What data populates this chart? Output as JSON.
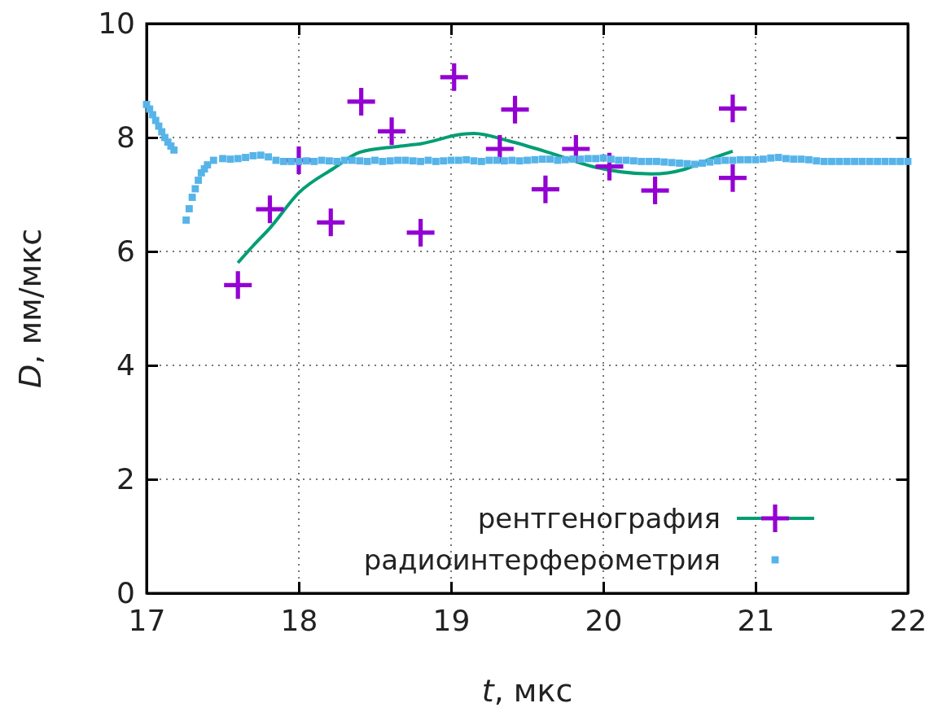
{
  "chart_data": {
    "type": "scatter",
    "xlabel": "t, мкс",
    "ylabel": "D, мм/мкс",
    "xlim": [
      17,
      22
    ],
    "ylim": [
      0,
      10
    ],
    "xticks": [
      17,
      18,
      19,
      20,
      21,
      22
    ],
    "yticks": [
      0,
      2,
      4,
      6,
      8,
      10
    ],
    "grid": true,
    "legend": "bottom right",
    "series": [
      {
        "type": "line",
        "color": "#009e73",
        "line_style": "solid",
        "marker": "none",
        "x": [
          17.6,
          17.7,
          17.81,
          18.0,
          18.23,
          18.4,
          18.64,
          18.8,
          19.08,
          19.15,
          19.38,
          19.65,
          19.93,
          20.32,
          20.53,
          20.71,
          20.85
        ],
        "values": [
          5.8,
          6.1,
          6.41,
          7.03,
          7.46,
          7.74,
          7.84,
          7.89,
          8.06,
          8.07,
          7.94,
          7.73,
          7.49,
          7.36,
          7.44,
          7.63,
          7.76
        ]
      },
      {
        "name": "рентгенография",
        "color": "#9400d3",
        "marker": "cross",
        "x": [
          17.6,
          17.81,
          18.0,
          18.21,
          18.41,
          18.61,
          18.8,
          19.02,
          19.32,
          19.42,
          19.62,
          19.82,
          20.04,
          20.34,
          20.85,
          20.85
        ],
        "values": [
          5.41,
          6.74,
          7.6,
          6.51,
          8.63,
          8.11,
          6.33,
          9.06,
          7.8,
          8.49,
          7.09,
          7.8,
          7.49,
          7.07,
          8.51,
          7.29
        ]
      },
      {
        "name": "радиоинтерферометрия",
        "color": "#56b4e9",
        "marker": "square",
        "x": [
          17.0,
          17.02,
          17.04,
          17.06,
          17.08,
          17.1,
          17.12,
          17.14,
          17.16,
          17.18,
          17.26,
          17.28,
          17.3,
          17.32,
          17.34,
          17.36,
          17.38,
          17.4,
          17.44,
          17.5,
          17.55,
          17.6,
          17.65,
          17.7,
          17.75,
          17.8,
          17.85,
          17.9,
          17.95,
          18.0,
          18.05,
          18.1,
          18.15,
          18.2,
          18.25,
          18.3,
          18.35,
          18.4,
          18.45,
          18.5,
          18.55,
          18.6,
          18.65,
          18.7,
          18.75,
          18.8,
          18.85,
          18.9,
          18.95,
          19.0,
          19.05,
          19.1,
          19.15,
          19.2,
          19.25,
          19.3,
          19.35,
          19.4,
          19.45,
          19.5,
          19.55,
          19.6,
          19.65,
          19.7,
          19.75,
          19.8,
          19.85,
          19.9,
          19.95,
          20.0,
          20.05,
          20.1,
          20.15,
          20.2,
          20.25,
          20.3,
          20.35,
          20.4,
          20.45,
          20.5,
          20.55,
          20.6,
          20.65,
          20.7,
          20.75,
          20.8,
          20.85,
          20.9,
          20.95,
          21.0,
          21.05,
          21.1,
          21.15,
          21.2,
          21.25,
          21.3,
          21.35,
          21.4,
          21.45,
          21.5,
          21.55,
          21.6,
          21.65,
          21.7,
          21.75,
          21.8,
          21.85,
          21.9,
          21.95,
          22.0
        ],
        "values": [
          8.58,
          8.5,
          8.4,
          8.3,
          8.2,
          8.1,
          8.0,
          7.92,
          7.85,
          7.78,
          6.55,
          6.75,
          6.95,
          7.1,
          7.25,
          7.38,
          7.45,
          7.52,
          7.6,
          7.63,
          7.62,
          7.63,
          7.65,
          7.68,
          7.69,
          7.66,
          7.6,
          7.58,
          7.58,
          7.58,
          7.59,
          7.58,
          7.6,
          7.59,
          7.58,
          7.6,
          7.6,
          7.59,
          7.58,
          7.6,
          7.58,
          7.59,
          7.6,
          7.6,
          7.59,
          7.58,
          7.6,
          7.58,
          7.59,
          7.6,
          7.6,
          7.61,
          7.59,
          7.58,
          7.6,
          7.6,
          7.59,
          7.6,
          7.59,
          7.6,
          7.61,
          7.62,
          7.62,
          7.6,
          7.61,
          7.62,
          7.62,
          7.63,
          7.63,
          7.64,
          7.62,
          7.6,
          7.6,
          7.59,
          7.58,
          7.58,
          7.58,
          7.57,
          7.56,
          7.55,
          7.54,
          7.53,
          7.55,
          7.57,
          7.59,
          7.6,
          7.6,
          7.61,
          7.61,
          7.61,
          7.62,
          7.64,
          7.65,
          7.63,
          7.62,
          7.62,
          7.61,
          7.59,
          7.58,
          7.58,
          7.58,
          7.58,
          7.58,
          7.58,
          7.58,
          7.58,
          7.58,
          7.58,
          7.58,
          7.58
        ]
      }
    ]
  }
}
